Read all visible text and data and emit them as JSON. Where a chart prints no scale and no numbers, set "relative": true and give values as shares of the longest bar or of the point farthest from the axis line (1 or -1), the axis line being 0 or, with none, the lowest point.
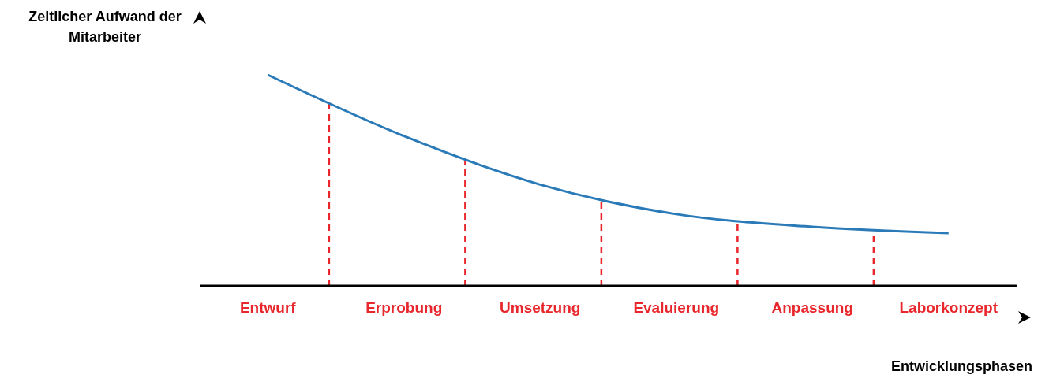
{
  "chart_data": {
    "type": "line",
    "relative": true,
    "xlabel": "Entwicklungsphasen",
    "ylabel": "Zeitlicher Aufwand der Mitarbeiter",
    "categories": [
      "Entwurf",
      "Erprobung",
      "Umsetzung",
      "Evaluierung",
      "Anpassung",
      "Laborkonzept"
    ],
    "series": [
      {
        "color": "#2a7ab8",
        "values": [
          1,
          0.71,
          0.48,
          0.34,
          0.28,
          0.25
        ]
      }
    ],
    "ref_lines": [
      {
        "axis": "x",
        "value": "Entwurf",
        "color": "#e8262b",
        "line_style": "dashed"
      },
      {
        "axis": "x",
        "value": "Erprobung",
        "color": "#e8262b",
        "line_style": "dashed"
      },
      {
        "axis": "x",
        "value": "Umsetzung",
        "color": "#e8262b",
        "line_style": "dashed"
      },
      {
        "axis": "x",
        "value": "Evaluierung",
        "color": "#e8262b",
        "line_style": "dashed"
      },
      {
        "axis": "x",
        "value": "Anpassung",
        "color": "#e8262b",
        "line_style": "dashed"
      }
    ],
    "grid": false,
    "legend": false,
    "marker": "none",
    "line_style": "solid"
  }
}
